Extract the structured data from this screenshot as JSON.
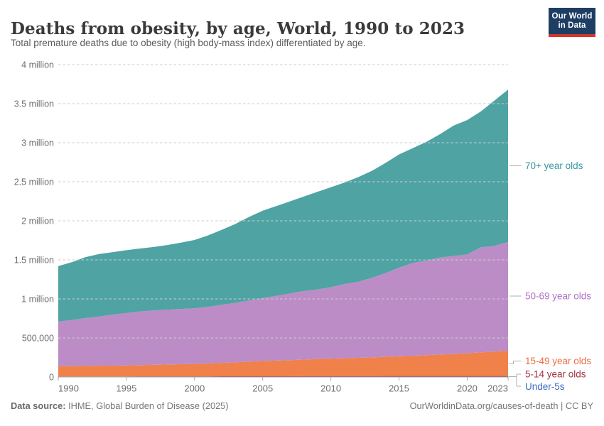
{
  "header": {
    "title": "Deaths from obesity, by age, World, 1990 to 2023",
    "subtitle": "Total premature deaths due to obesity (high body-mass index) differentiated by age.",
    "logo": {
      "line1": "Our World",
      "line2": "in Data",
      "bg_color": "#1d3d63",
      "accent_color": "#d0362c"
    }
  },
  "footer": {
    "source_label": "Data source:",
    "source_value": " IHME, Global Burden of Disease (2025)",
    "link": "OurWorldinData.org/causes-of-death | CC BY"
  },
  "chart_data": {
    "type": "area",
    "stacked": true,
    "title": "Deaths from obesity, by age, World, 1990 to 2023",
    "xlabel": "",
    "ylabel": "",
    "grid": "dashed-horizontal",
    "legend_position": "right-of-plot",
    "xlim": [
      1990,
      2023
    ],
    "ylim": [
      0,
      4000000
    ],
    "x": [
      1990,
      1991,
      1992,
      1993,
      1994,
      1995,
      1996,
      1997,
      1998,
      1999,
      2000,
      2001,
      2002,
      2003,
      2004,
      2005,
      2006,
      2007,
      2008,
      2009,
      2010,
      2011,
      2012,
      2013,
      2014,
      2015,
      2016,
      2017,
      2018,
      2019,
      2020,
      2021,
      2022,
      2023
    ],
    "xticks": [
      1990,
      1995,
      2000,
      2005,
      2010,
      2015,
      2020,
      2023
    ],
    "yticks": [
      {
        "value": 0,
        "label": "0"
      },
      {
        "value": 500000,
        "label": "500,000"
      },
      {
        "value": 1000000,
        "label": "1 million"
      },
      {
        "value": 1500000,
        "label": "1.5 million"
      },
      {
        "value": 2000000,
        "label": "2 million"
      },
      {
        "value": 2500000,
        "label": "2.5 million"
      },
      {
        "value": 3000000,
        "label": "3 million"
      },
      {
        "value": 3500000,
        "label": "3.5 million"
      },
      {
        "value": 4000000,
        "label": "4 million"
      }
    ],
    "series": [
      {
        "name": "Under-5s",
        "fill_color": "#4c6fc9",
        "label_color": "#3d6ac5",
        "values": [
          2000,
          2000,
          2000,
          2000,
          2000,
          2000,
          2000,
          2000,
          2000,
          2000,
          2000,
          2000,
          2000,
          2000,
          2000,
          2000,
          2000,
          2000,
          3000,
          3000,
          3000,
          3000,
          3000,
          3000,
          3000,
          3000,
          3000,
          3000,
          3000,
          3000,
          3000,
          3000,
          3000,
          3000
        ]
      },
      {
        "name": "5-14 year olds",
        "fill_color": "#a2343f",
        "label_color": "#a2343f",
        "values": [
          5000,
          5000,
          5000,
          5000,
          5000,
          5000,
          6000,
          6000,
          6000,
          6000,
          6000,
          6000,
          7000,
          7000,
          7000,
          7000,
          7000,
          7000,
          8000,
          8000,
          8000,
          8000,
          8000,
          8000,
          9000,
          9000,
          9000,
          9000,
          9000,
          9000,
          10000,
          10000,
          10000,
          10000
        ]
      },
      {
        "name": "15-49 year olds",
        "fill_color": "#f0814b",
        "label_color": "#eb6e45",
        "values": [
          129000,
          132000,
          135000,
          137000,
          138000,
          141000,
          144000,
          148000,
          152000,
          156000,
          159000,
          165000,
          172000,
          180000,
          188000,
          196000,
          201000,
          207000,
          212000,
          218000,
          224000,
          229000,
          234000,
          240000,
          246000,
          253000,
          260000,
          268000,
          275000,
          283000,
          292000,
          302000,
          312000,
          323000
        ]
      },
      {
        "name": "50-69 year olds",
        "fill_color": "#bc8cc7",
        "label_color": "#af71c9",
        "values": [
          574000,
          591000,
          613000,
          631000,
          654000,
          671000,
          688000,
          696000,
          702000,
          708000,
          714000,
          726000,
          744000,
          761000,
          783000,
          805000,
          829000,
          853000,
          877000,
          891000,
          915000,
          950000,
          974000,
          1018000,
          1072000,
          1135000,
          1188000,
          1210000,
          1242000,
          1254000,
          1265000,
          1345000,
          1355000,
          1394000
        ]
      },
      {
        "name": "70+ year olds",
        "fill_color": "#4fa3a3",
        "label_color": "#3b96a0",
        "values": [
          710000,
          740000,
          780000,
          800000,
          800000,
          805000,
          805000,
          813000,
          828000,
          848000,
          873000,
          915000,
          960000,
          1010000,
          1070000,
          1120000,
          1150000,
          1180000,
          1210000,
          1250000,
          1280000,
          1300000,
          1340000,
          1370000,
          1410000,
          1450000,
          1470000,
          1520000,
          1580000,
          1670000,
          1720000,
          1740000,
          1860000,
          1950000
        ]
      }
    ],
    "colors": {
      "grid": "#dadada",
      "axis": "#a8a8a8",
      "tick_label": "#6e6e6e",
      "legend_connector": "#afafaf"
    }
  }
}
